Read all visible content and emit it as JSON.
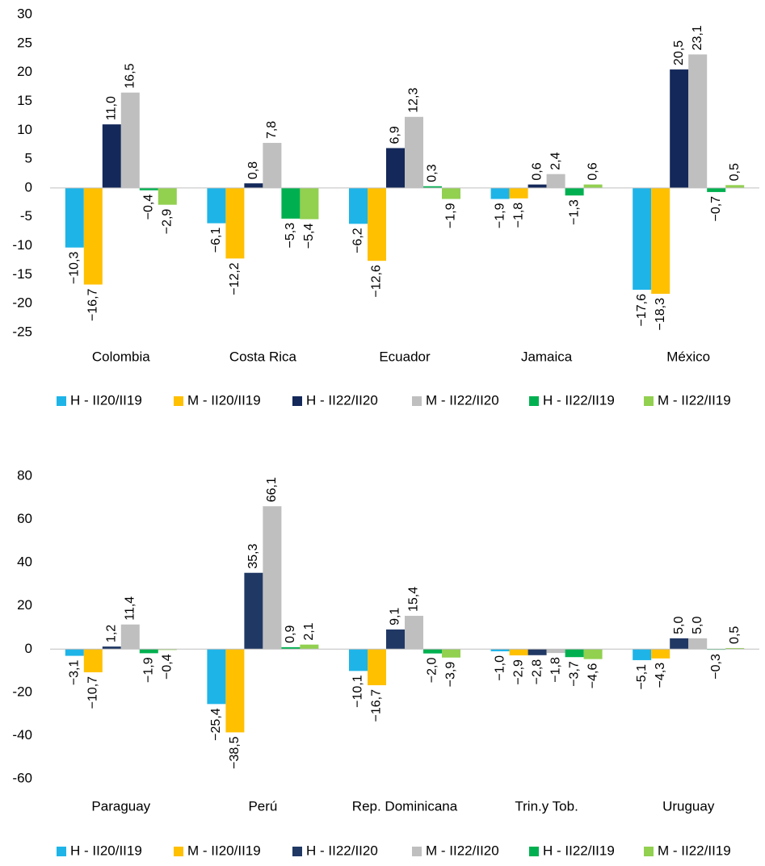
{
  "chart_data": [
    {
      "type": "bar",
      "categories": [
        "Colombia",
        "Costa Rica",
        "Ecuador",
        "Jamaica",
        "México"
      ],
      "ylim": [
        -25,
        30
      ],
      "yticks": [
        -25,
        -20,
        -15,
        -10,
        -5,
        0,
        5,
        10,
        15,
        20,
        25,
        30
      ],
      "series": [
        {
          "name": "H - II20/II19",
          "color": "#1eb4e8",
          "values": [
            -10.3,
            -6.1,
            -6.2,
            -1.9,
            -17.6
          ],
          "value_labels": [
            "−10,3",
            "−6,1",
            "−6,2",
            "−1,9",
            "−17,6"
          ]
        },
        {
          "name": "M - II20/II19",
          "color": "#ffc000",
          "values": [
            -16.7,
            -12.2,
            -12.6,
            -1.8,
            -18.3
          ],
          "value_labels": [
            "−16,7",
            "−12,2",
            "−12,6",
            "−1,8",
            "−18,3"
          ]
        },
        {
          "name": "H - II22/II20",
          "color": "#14285a",
          "values": [
            11.0,
            0.8,
            6.9,
            0.6,
            20.5
          ],
          "value_labels": [
            "11,0",
            "0,8",
            "6,9",
            "0,6",
            "20,5"
          ]
        },
        {
          "name": "M - II22/II20",
          "color": "#bfbfbf",
          "values": [
            16.5,
            7.8,
            12.3,
            2.4,
            23.1
          ],
          "value_labels": [
            "16,5",
            "7,8",
            "12,3",
            "2,4",
            "23,1"
          ]
        },
        {
          "name": "H - II22/II19",
          "color": "#00b050",
          "values": [
            -0.4,
            -5.3,
            0.3,
            -1.3,
            -0.7
          ],
          "value_labels": [
            "−0,4",
            "−5,3",
            "0,3",
            "−1,3",
            "−0,7"
          ]
        },
        {
          "name": "M - II22/II19",
          "color": "#92d050",
          "values": [
            -2.9,
            -5.4,
            -1.9,
            0.6,
            0.5
          ],
          "value_labels": [
            "−2,9",
            "−5,4",
            "−1,9",
            "0,6",
            "0,5"
          ]
        }
      ]
    },
    {
      "type": "bar",
      "categories": [
        "Paraguay",
        "Perú",
        "Rep. Dominicana",
        "Trin.y Tob.",
        "Uruguay"
      ],
      "ylim": [
        -60,
        80
      ],
      "yticks": [
        -60,
        -40,
        -20,
        0,
        20,
        40,
        60,
        80
      ],
      "series": [
        {
          "name": "H - II20/II19",
          "color": "#1eb4e8",
          "values": [
            -3.1,
            -25.4,
            -10.1,
            -1.0,
            -5.1
          ],
          "value_labels": [
            "−3,1",
            "−25,4",
            "−10,1",
            "−1,0",
            "−5,1"
          ]
        },
        {
          "name": "M - II20/II19",
          "color": "#ffc000",
          "values": [
            -10.7,
            -38.5,
            -16.7,
            -2.9,
            -4.3
          ],
          "value_labels": [
            "−10,7",
            "−38,5",
            "−16,7",
            "−2,9",
            "−4,3"
          ]
        },
        {
          "name": "H - II22/II20",
          "color": "#203864",
          "values": [
            1.2,
            35.3,
            9.1,
            -2.8,
            5.0
          ],
          "value_labels": [
            "1,2",
            "35,3",
            "9,1",
            "−2,8",
            "5,0"
          ]
        },
        {
          "name": "M - II22/II20",
          "color": "#bfbfbf",
          "values": [
            11.4,
            66.1,
            15.4,
            -1.8,
            5.0
          ],
          "value_labels": [
            "11,4",
            "66,1",
            "15,4",
            "−1,8",
            "5,0"
          ]
        },
        {
          "name": "H - II22/II19",
          "color": "#00b050",
          "values": [
            -1.9,
            0.9,
            -2.0,
            -3.7,
            -0.3
          ],
          "value_labels": [
            "−1,9",
            "0,9",
            "−2,0",
            "−3,7",
            "−0,3"
          ]
        },
        {
          "name": "M - II22/II19",
          "color": "#92d050",
          "values": [
            -0.4,
            2.1,
            -3.9,
            -4.6,
            0.5
          ],
          "value_labels": [
            "−0,4",
            "2,1",
            "−3,9",
            "−4,6",
            "0,5"
          ]
        }
      ]
    }
  ]
}
